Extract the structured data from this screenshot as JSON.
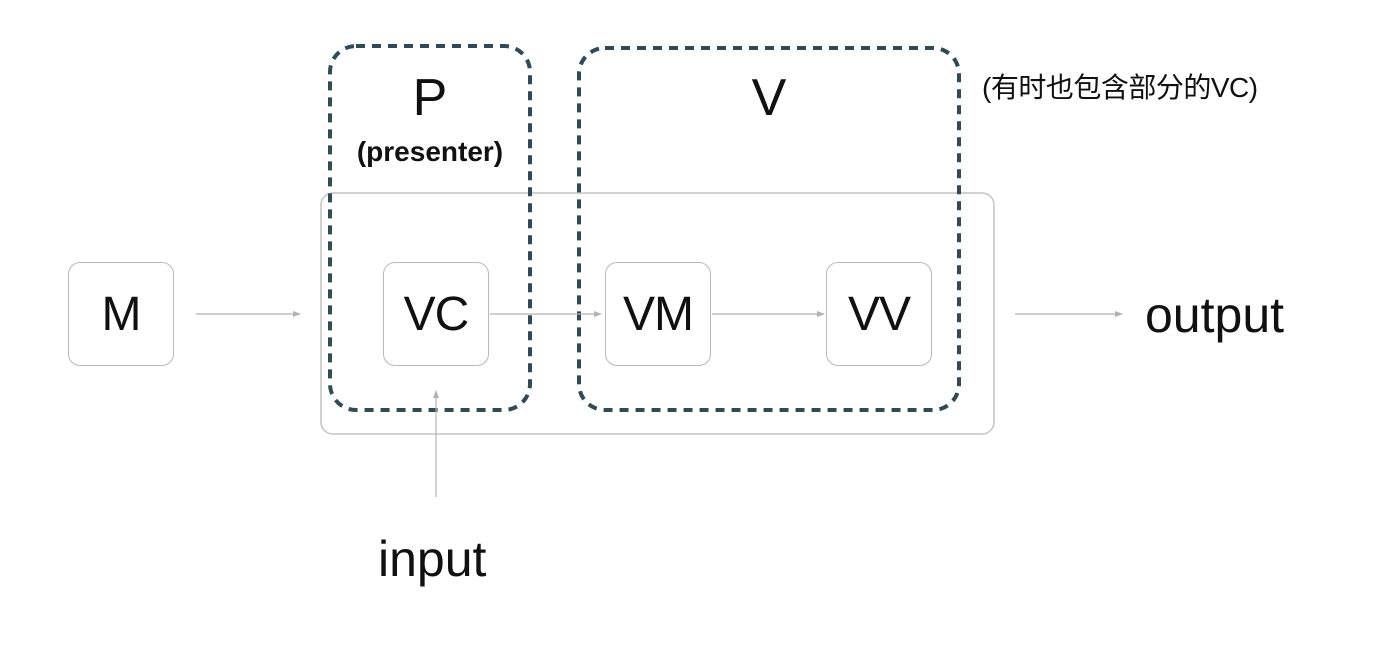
{
  "nodes": {
    "m": "M",
    "vc": "VC",
    "vm": "VM",
    "vv": "VV"
  },
  "groups": {
    "presenter": {
      "letter": "P",
      "subtitle": "(presenter)"
    },
    "view": {
      "letter": "V",
      "note": "(有时也包含部分的VC)"
    }
  },
  "io": {
    "input": "input",
    "output": "output"
  },
  "colors": {
    "dashed_border": "#2e4b57",
    "node_border": "#b9b9b9",
    "container_border": "#c4c4c4",
    "arrow": "#b3b3b3"
  }
}
